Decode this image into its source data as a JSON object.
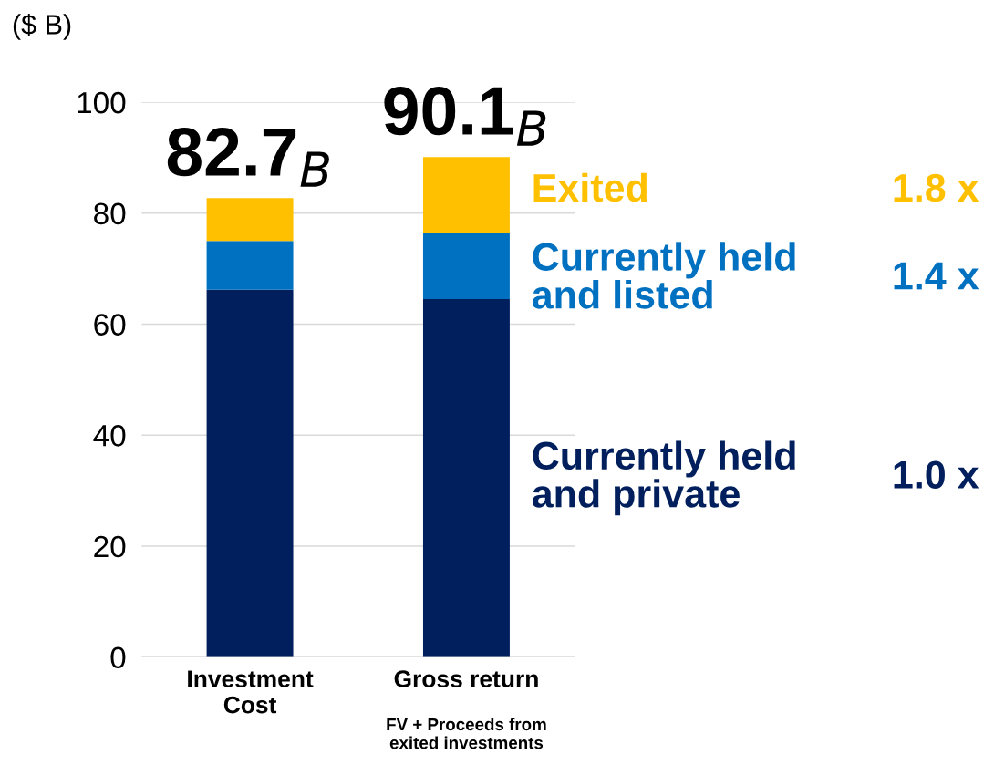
{
  "chart_data": {
    "type": "bar",
    "stacked": true,
    "ylabel": "($ B)",
    "categories": [
      "Investment\nCost",
      "Gross return"
    ],
    "series": [
      {
        "name": "Currently held\nand private",
        "color": "#001f5c",
        "values": [
          66.2,
          64.5
        ]
      },
      {
        "name": "Currently held\nand listed",
        "color": "#0070c0",
        "values": [
          8.8,
          11.9
        ]
      },
      {
        "name": "Exited",
        "color": "#ffc000",
        "values": [
          7.7,
          13.7
        ]
      }
    ],
    "totals": [
      "82.7$_{B}$",
      "90.1$_{B}$"
    ],
    "annotations": [
      "1.0 x",
      "1.4 x",
      "1.8 x",
      "FV + Proceeds from\nexited investments"
    ],
    "ylim": [
      0,
      100
    ],
    "yticks": [
      0,
      20,
      40,
      60,
      80,
      100
    ],
    "grid": "y",
    "legend": "right"
  }
}
